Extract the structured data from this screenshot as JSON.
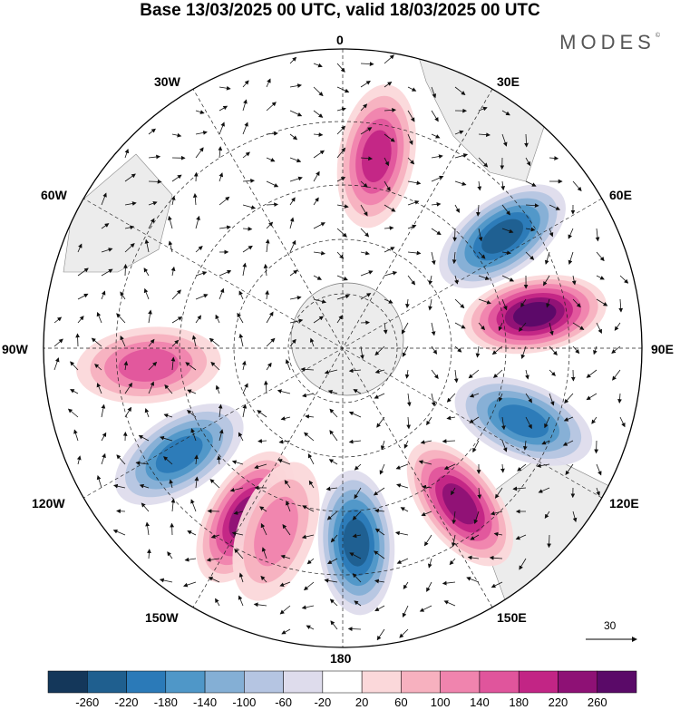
{
  "header": {
    "title": "Base 13/03/2025 00 UTC, valid 18/03/2025 00 UTC",
    "brand": "MODES",
    "brand_mark": "©"
  },
  "longitudes": {
    "lon_0": "0",
    "lon_30e": "30E",
    "lon_60e": "60E",
    "lon_90e": "90E",
    "lon_120e": "120E",
    "lon_150e": "150E",
    "lon_180": "180",
    "lon_150w": "150W",
    "lon_120w": "120W",
    "lon_90w": "90W",
    "lon_60w": "60W",
    "lon_30w": "30W"
  },
  "reference_vector": {
    "label": "30"
  },
  "colorbar": {
    "colors": [
      "#14375a",
      "#1f5f8f",
      "#2b7ab8",
      "#4f97c8",
      "#84afd5",
      "#b5c5e2",
      "#dedcec",
      "#ffffff",
      "#fbd8da",
      "#f7b1bf",
      "#f084ae",
      "#e0559c",
      "#c22585",
      "#8e1175",
      "#5a0a68"
    ],
    "labels": [
      "-260",
      "-220",
      "-180",
      "-140",
      "-100",
      "-60",
      "-20",
      "20",
      "60",
      "100",
      "140",
      "180",
      "220",
      "260"
    ]
  },
  "anomaly_centers": [
    {
      "sign": "positive",
      "level": 180,
      "lon": 10
    },
    {
      "sign": "negative",
      "level": -220,
      "lon": 55
    },
    {
      "sign": "positive",
      "level": 260,
      "lon": 80
    },
    {
      "sign": "negative",
      "level": -180,
      "lon": 112
    },
    {
      "sign": "positive",
      "level": 220,
      "lon": 143
    },
    {
      "sign": "negative",
      "level": -220,
      "lon": 176
    },
    {
      "sign": "positive",
      "level": 220,
      "lon": 210
    },
    {
      "sign": "negative",
      "level": -180,
      "lon": 237
    },
    {
      "sign": "positive",
      "level": 140,
      "lon": 265
    },
    {
      "sign": "positive",
      "level": 100,
      "lon": 200
    }
  ]
}
